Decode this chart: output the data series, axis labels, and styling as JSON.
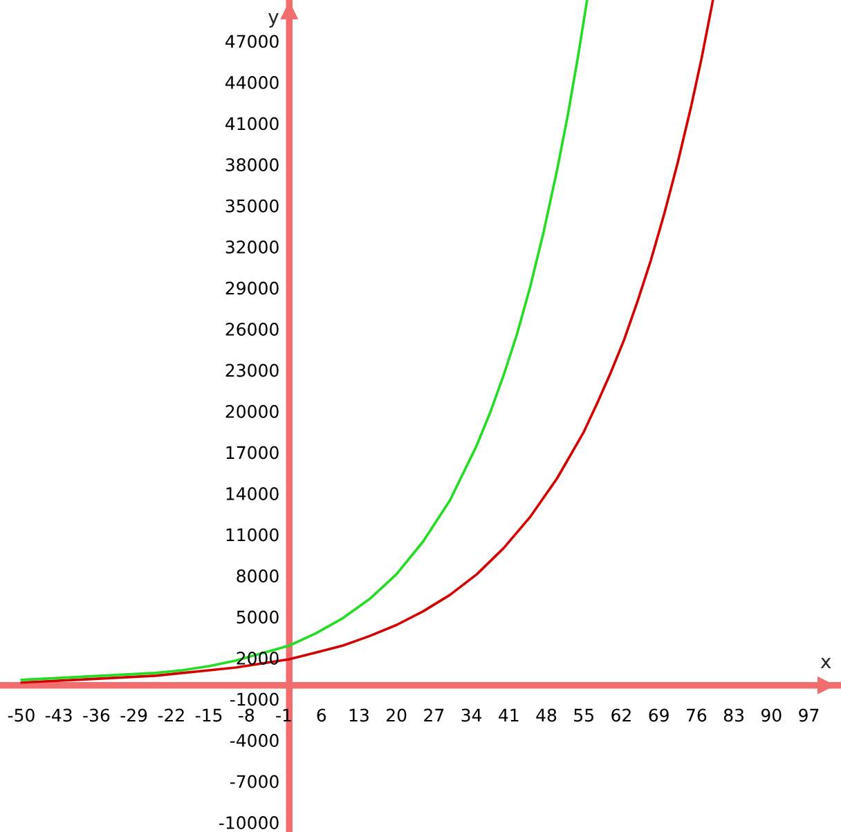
{
  "chart_data": {
    "type": "line",
    "xlabel": "x",
    "ylabel": "y",
    "xlim": [
      -54,
      103
    ],
    "ylim": [
      -10700,
      50000
    ],
    "xticks": [
      -50,
      -43,
      -36,
      -29,
      -22,
      -15,
      -8,
      -1,
      6,
      13,
      20,
      27,
      34,
      41,
      48,
      55,
      62,
      69,
      76,
      83,
      90,
      97
    ],
    "yticks": [
      -10000,
      -7000,
      -4000,
      -1000,
      2000,
      5000,
      8000,
      11000,
      14000,
      17000,
      20000,
      23000,
      26000,
      29000,
      32000,
      35000,
      38000,
      41000,
      44000,
      47000
    ],
    "series": [
      {
        "color": "#22dd22",
        "x": [
          -50,
          -45,
          -40,
          -35,
          -30,
          -25,
          -20,
          -15,
          -10,
          0,
          5,
          10,
          15,
          20,
          25,
          30,
          35,
          37.5,
          40,
          42.5,
          45,
          47.5,
          50,
          52,
          54,
          55.6
        ],
        "values": [
          400,
          500,
          600,
          700,
          800,
          900,
          1100,
          1400,
          1800,
          2900,
          3800,
          4900,
          6300,
          8100,
          10500,
          13500,
          17500,
          19900,
          22600,
          25600,
          29100,
          33100,
          37600,
          41600,
          46100,
          50000
        ]
      },
      {
        "color": "#d40000",
        "x": [
          -50,
          -45,
          -40,
          -35,
          -30,
          -25,
          -20,
          -15,
          -10,
          0,
          5,
          10,
          15,
          20,
          25,
          30,
          35,
          40,
          45,
          50,
          55,
          57.5,
          60,
          62.5,
          65,
          67.5,
          70,
          72.5,
          75,
          77,
          79.1
        ],
        "values": [
          200,
          300,
          400,
          500,
          600,
          700,
          900,
          1100,
          1300,
          1900,
          2400,
          2900,
          3600,
          4400,
          5400,
          6600,
          8100,
          10000,
          12300,
          15100,
          18500,
          20600,
          22800,
          25200,
          28000,
          31000,
          34400,
          38100,
          42200,
          45800,
          50000
        ]
      }
    ]
  }
}
